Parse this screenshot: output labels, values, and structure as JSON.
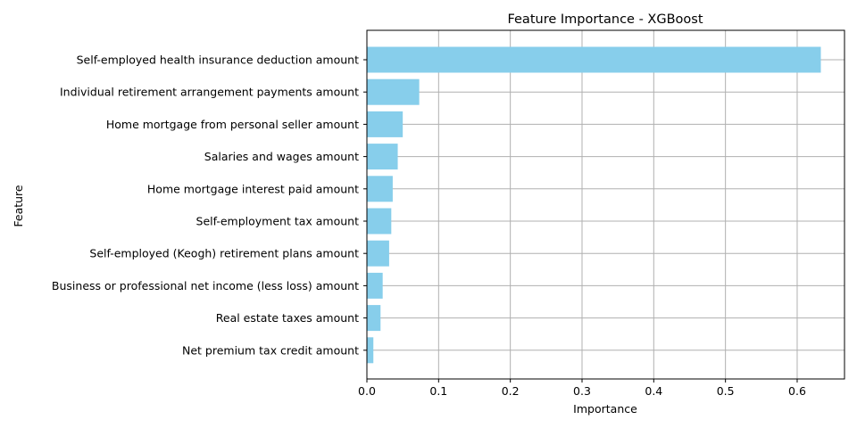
{
  "chart_data": {
    "type": "bar",
    "orientation": "horizontal",
    "title": "Feature Importance - XGBoost",
    "xlabel": "Importance",
    "ylabel": "Feature",
    "xlim": [
      0,
      0.666
    ],
    "xticks": [
      "0.0",
      "0.1",
      "0.2",
      "0.3",
      "0.4",
      "0.5",
      "0.6"
    ],
    "grid": true,
    "bar_color": "#87CEEB",
    "categories": [
      "Self-employed health insurance deduction amount",
      "Individual retirement arrangement payments amount",
      "Home mortgage from personal seller amount",
      "Salaries and wages amount",
      "Home mortgage interest paid amount",
      "Self-employment tax amount",
      "Self-employed (Keogh) retirement plans amount",
      "Business or professional net income (less loss) amount",
      "Real estate taxes amount",
      "Net premium tax credit amount"
    ],
    "values": [
      0.633,
      0.073,
      0.05,
      0.043,
      0.036,
      0.034,
      0.031,
      0.022,
      0.019,
      0.009
    ]
  }
}
